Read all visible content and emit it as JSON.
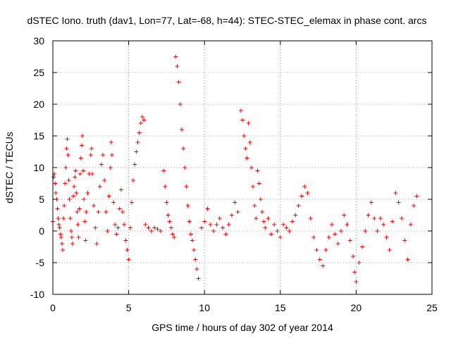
{
  "chart_data": {
    "type": "scatter",
    "title": "dSTEC Iono. truth (dav1, Lon=77, Lat=-68, h=44): STEC-STEC_elemax in phase cont. arcs",
    "xlabel": "GPS time / hours of day 302 of year 2014",
    "ylabel": "dSTEC  / TECUs",
    "xlim": [
      0,
      25
    ],
    "ylim": [
      -10,
      30
    ],
    "xticks": [
      0,
      5,
      10,
      15,
      20,
      25
    ],
    "yticks": [
      -10,
      -5,
      0,
      5,
      10,
      15,
      20,
      25,
      30
    ],
    "grid": true,
    "legend": "none",
    "marker": "+",
    "color": "#ff0000",
    "series": [
      {
        "values": [
          [
            0.0,
            1.5
          ],
          [
            0.05,
            8.5
          ],
          [
            0.1,
            9.0
          ],
          [
            0.15,
            7.5
          ],
          [
            0.2,
            6.0
          ],
          [
            0.25,
            5.0
          ],
          [
            0.3,
            3.5
          ],
          [
            0.35,
            2.0
          ],
          [
            0.4,
            1.0
          ],
          [
            0.45,
            0.5
          ],
          [
            0.5,
            -0.5
          ],
          [
            0.55,
            -1.0
          ],
          [
            0.6,
            -2.0
          ],
          [
            0.65,
            -3.0
          ],
          [
            0.7,
            2.0
          ],
          [
            0.75,
            4.0
          ],
          [
            0.8,
            7.5
          ],
          [
            0.85,
            10.0
          ],
          [
            0.9,
            13.0
          ],
          [
            0.95,
            14.5
          ],
          [
            1.0,
            12.0
          ],
          [
            1.05,
            8.0
          ],
          [
            1.1,
            5.0
          ],
          [
            1.15,
            2.0
          ],
          [
            1.2,
            0.0
          ],
          [
            1.25,
            -1.0
          ],
          [
            1.3,
            -2.0
          ],
          [
            1.35,
            5.5
          ],
          [
            1.4,
            7.0
          ],
          [
            1.45,
            8.5
          ],
          [
            1.5,
            9.5
          ],
          [
            1.55,
            6.0
          ],
          [
            1.6,
            3.0
          ],
          [
            1.65,
            1.0
          ],
          [
            1.7,
            -1.0
          ],
          [
            1.75,
            3.5
          ],
          [
            1.8,
            9.0
          ],
          [
            1.85,
            11.5
          ],
          [
            1.9,
            13.5
          ],
          [
            1.95,
            15.0
          ],
          [
            2.0,
            9.5
          ],
          [
            2.05,
            5.0
          ],
          [
            2.1,
            1.5
          ],
          [
            2.15,
            -1.5
          ],
          [
            2.2,
            3.0
          ],
          [
            2.3,
            6.0
          ],
          [
            2.4,
            9.0
          ],
          [
            2.5,
            12.0
          ],
          [
            2.55,
            13.0
          ],
          [
            2.6,
            9.0
          ],
          [
            2.7,
            4.0
          ],
          [
            2.8,
            0.5
          ],
          [
            2.9,
            -2.0
          ],
          [
            3.0,
            3.0
          ],
          [
            3.1,
            7.0
          ],
          [
            3.2,
            10.5
          ],
          [
            3.3,
            12.0
          ],
          [
            3.4,
            8.0
          ],
          [
            3.5,
            3.0
          ],
          [
            3.6,
            0.0
          ],
          [
            3.7,
            5.5
          ],
          [
            3.8,
            10.0
          ],
          [
            3.85,
            14.0
          ],
          [
            3.9,
            12.0
          ],
          [
            4.0,
            4.5
          ],
          [
            4.1,
            1.0
          ],
          [
            4.2,
            -0.5
          ],
          [
            4.3,
            0.5
          ],
          [
            4.4,
            3.5
          ],
          [
            4.5,
            6.5
          ],
          [
            4.6,
            3.0
          ],
          [
            4.7,
            1.0
          ],
          [
            4.8,
            -1.5
          ],
          [
            4.9,
            -3.0
          ],
          [
            5.0,
            -4.5
          ],
          [
            5.1,
            0.5
          ],
          [
            5.2,
            4.5
          ],
          [
            5.3,
            8.0
          ],
          [
            5.4,
            10.5
          ],
          [
            5.5,
            12.5
          ],
          [
            5.6,
            14.0
          ],
          [
            5.7,
            15.5
          ],
          [
            5.8,
            17.0
          ],
          [
            5.9,
            18.0
          ],
          [
            6.0,
            17.5
          ],
          [
            6.1,
            1.0
          ],
          [
            6.3,
            0.5
          ],
          [
            6.5,
            0.0
          ],
          [
            6.7,
            0.5
          ],
          [
            6.9,
            0.3
          ],
          [
            7.1,
            0.0
          ],
          [
            7.3,
            9.5
          ],
          [
            7.4,
            7.0
          ],
          [
            7.5,
            4.5
          ],
          [
            7.6,
            2.5
          ],
          [
            7.7,
            1.5
          ],
          [
            7.8,
            0.5
          ],
          [
            7.9,
            -0.5
          ],
          [
            8.0,
            -1.0
          ],
          [
            8.1,
            27.5
          ],
          [
            8.2,
            26.0
          ],
          [
            8.3,
            23.5
          ],
          [
            8.4,
            20.0
          ],
          [
            8.5,
            16.0
          ],
          [
            8.6,
            13.0
          ],
          [
            8.7,
            10.0
          ],
          [
            8.8,
            7.0
          ],
          [
            8.9,
            4.0
          ],
          [
            9.0,
            1.5
          ],
          [
            9.1,
            -0.5
          ],
          [
            9.2,
            -1.5
          ],
          [
            9.3,
            -3.0
          ],
          [
            9.4,
            -4.5
          ],
          [
            9.5,
            -6.0
          ],
          [
            9.6,
            -7.5
          ],
          [
            9.8,
            0.5
          ],
          [
            10.0,
            1.5
          ],
          [
            10.2,
            3.5
          ],
          [
            10.4,
            1.0
          ],
          [
            10.6,
            0.0
          ],
          [
            10.8,
            1.0
          ],
          [
            11.0,
            2.0
          ],
          [
            11.2,
            0.5
          ],
          [
            11.4,
            -0.5
          ],
          [
            11.6,
            1.0
          ],
          [
            11.8,
            2.5
          ],
          [
            12.0,
            4.5
          ],
          [
            12.2,
            3.0
          ],
          [
            12.4,
            19.0
          ],
          [
            12.5,
            17.5
          ],
          [
            12.6,
            15.0
          ],
          [
            12.7,
            13.0
          ],
          [
            12.8,
            11.5
          ],
          [
            12.9,
            17.0
          ],
          [
            13.0,
            14.0
          ],
          [
            13.1,
            10.0
          ],
          [
            13.2,
            7.0
          ],
          [
            13.3,
            4.0
          ],
          [
            13.4,
            2.0
          ],
          [
            13.5,
            9.5
          ],
          [
            13.6,
            7.5
          ],
          [
            13.7,
            5.0
          ],
          [
            13.8,
            3.0
          ],
          [
            13.9,
            1.5
          ],
          [
            14.0,
            0.5
          ],
          [
            14.2,
            2.0
          ],
          [
            14.4,
            -0.5
          ],
          [
            14.6,
            1.0
          ],
          [
            14.8,
            0.0
          ],
          [
            15.0,
            -1.0
          ],
          [
            15.2,
            1.0
          ],
          [
            15.4,
            0.5
          ],
          [
            15.6,
            0.0
          ],
          [
            15.8,
            1.5
          ],
          [
            16.0,
            2.5
          ],
          [
            16.2,
            4.0
          ],
          [
            16.4,
            5.5
          ],
          [
            16.6,
            7.0
          ],
          [
            16.8,
            6.0
          ],
          [
            17.0,
            2.0
          ],
          [
            17.2,
            -1.0
          ],
          [
            17.4,
            -3.0
          ],
          [
            17.6,
            -4.5
          ],
          [
            17.8,
            -5.5
          ],
          [
            18.0,
            -3.0
          ],
          [
            18.2,
            -1.0
          ],
          [
            18.4,
            1.0
          ],
          [
            18.6,
            -0.5
          ],
          [
            18.8,
            -2.0
          ],
          [
            19.0,
            0.0
          ],
          [
            19.2,
            2.5
          ],
          [
            19.4,
            1.0
          ],
          [
            19.6,
            -1.5
          ],
          [
            19.8,
            -4.0
          ],
          [
            19.9,
            -6.5
          ],
          [
            20.0,
            -8.0
          ],
          [
            20.2,
            -5.0
          ],
          [
            20.4,
            -2.5
          ],
          [
            20.6,
            0.0
          ],
          [
            20.8,
            2.5
          ],
          [
            21.0,
            4.5
          ],
          [
            21.2,
            2.0
          ],
          [
            21.4,
            0.0
          ],
          [
            21.6,
            2.0
          ],
          [
            21.8,
            1.0
          ],
          [
            22.0,
            -1.0
          ],
          [
            22.2,
            -3.0
          ],
          [
            22.4,
            1.5
          ],
          [
            22.6,
            6.0
          ],
          [
            22.8,
            4.5
          ],
          [
            23.0,
            2.0
          ],
          [
            23.2,
            -1.5
          ],
          [
            23.4,
            -4.5
          ],
          [
            23.6,
            1.0
          ],
          [
            23.8,
            4.0
          ],
          [
            24.0,
            5.5
          ]
        ]
      }
    ]
  }
}
